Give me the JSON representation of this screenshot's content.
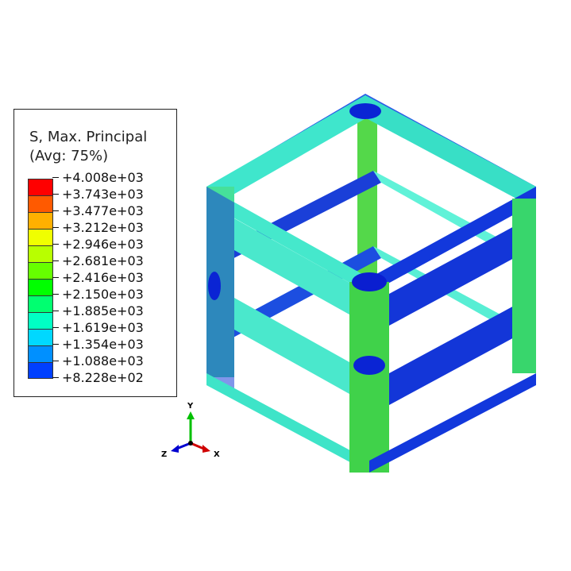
{
  "legend": {
    "title_line1": "S, Max. Principal",
    "title_line2": "(Avg: 75%)",
    "colors": [
      "#ff0000",
      "#ff5a00",
      "#ffb000",
      "#f0ff00",
      "#b8ff00",
      "#66ff00",
      "#00ff00",
      "#00ff70",
      "#00ffc4",
      "#00d8ff",
      "#0090ff",
      "#0040ff",
      "#0000ff"
    ],
    "labels": [
      "+4.008e+03",
      "+3.743e+03",
      "+3.477e+03",
      "+3.212e+03",
      "+2.946e+03",
      "+2.681e+03",
      "+2.416e+03",
      "+2.150e+03",
      "+1.885e+03",
      "+1.619e+03",
      "+1.354e+03",
      "+1.088e+03",
      "+8.228e+02"
    ]
  },
  "triad": {
    "y_label": "Y",
    "z_label": "Z",
    "x_label": "X",
    "y_color": "#00c000",
    "z_color": "#0000d0",
    "x_color": "#d00000"
  },
  "model": {
    "dark_blue": "#0a2ee0",
    "mid_blue": "#1c6ae0",
    "cyan": "#40e8cf",
    "light_cyan": "#6ff5e0",
    "green": "#35d13c",
    "lime": "#8ae34b"
  }
}
